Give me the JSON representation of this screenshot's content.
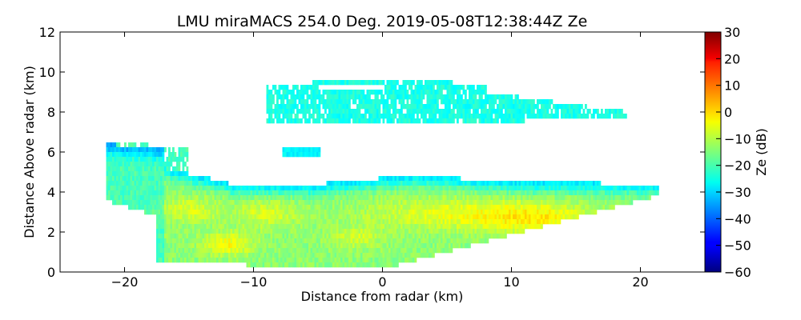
{
  "chart_data": {
    "type": "heatmap",
    "title": "LMU miraMACS 254.0 Deg. 2019-05-08T12:38:44Z  Ze",
    "xlabel": "Distance from radar (km)",
    "ylabel": "Distance Above radar  (km)",
    "xlim": [
      -25,
      25
    ],
    "ylim": [
      0,
      12
    ],
    "xticks": [
      -20,
      -10,
      0,
      10,
      20
    ],
    "xtick_labels": [
      "−20",
      "−10",
      "0",
      "10",
      "20"
    ],
    "yticks": [
      0,
      2,
      4,
      6,
      8,
      10,
      12
    ],
    "ytick_labels": [
      "0",
      "2",
      "4",
      "6",
      "8",
      "10",
      "12"
    ],
    "colorbar": {
      "label": "Ze (dB)",
      "range": [
        -60,
        30
      ],
      "ticks": [
        30,
        20,
        10,
        0,
        -10,
        -20,
        -30,
        -40,
        -50,
        -60
      ],
      "tick_labels": [
        "30",
        "20",
        "10",
        "0",
        "−10",
        "−20",
        "−30",
        "−40",
        "−50",
        "−60"
      ],
      "colormap": "jet"
    },
    "regions": [
      {
        "name": "lower cloud layer",
        "x": [
          -22,
          22
        ],
        "y": [
          0,
          5
        ],
        "ze_typical": [
          -25,
          5
        ]
      },
      {
        "name": "mid cloud fragments",
        "x": [
          -20,
          -17
        ],
        "y": [
          5,
          6.5
        ],
        "ze_typical": [
          -25,
          -15
        ]
      },
      {
        "name": "upper cloud layer",
        "x": [
          -9,
          19
        ],
        "y": [
          7.5,
          9.8
        ],
        "ze_typical": [
          -30,
          -20
        ]
      },
      {
        "name": "small cloud patch",
        "x": [
          -8,
          -5
        ],
        "y": [
          5.7,
          6.3
        ],
        "ze_typical": [
          -30,
          -25
        ]
      }
    ]
  }
}
